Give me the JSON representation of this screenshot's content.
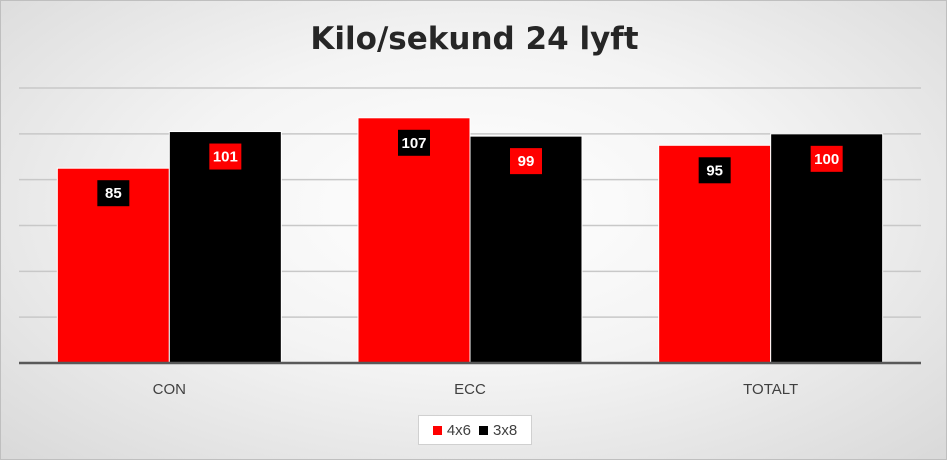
{
  "chart_data": {
    "type": "bar",
    "title": "Kilo/sekund 24 lyft",
    "categories": [
      "CON",
      "ECC",
      "TOTALT"
    ],
    "series": [
      {
        "name": "4x6",
        "values": [
          85,
          107,
          95
        ],
        "color": "#ff0000"
      },
      {
        "name": "3x8",
        "values": [
          101,
          99,
          100
        ],
        "color": "#000000"
      }
    ],
    "ylim": [
      0,
      120
    ],
    "grid": true,
    "legend_position": "bottom"
  }
}
